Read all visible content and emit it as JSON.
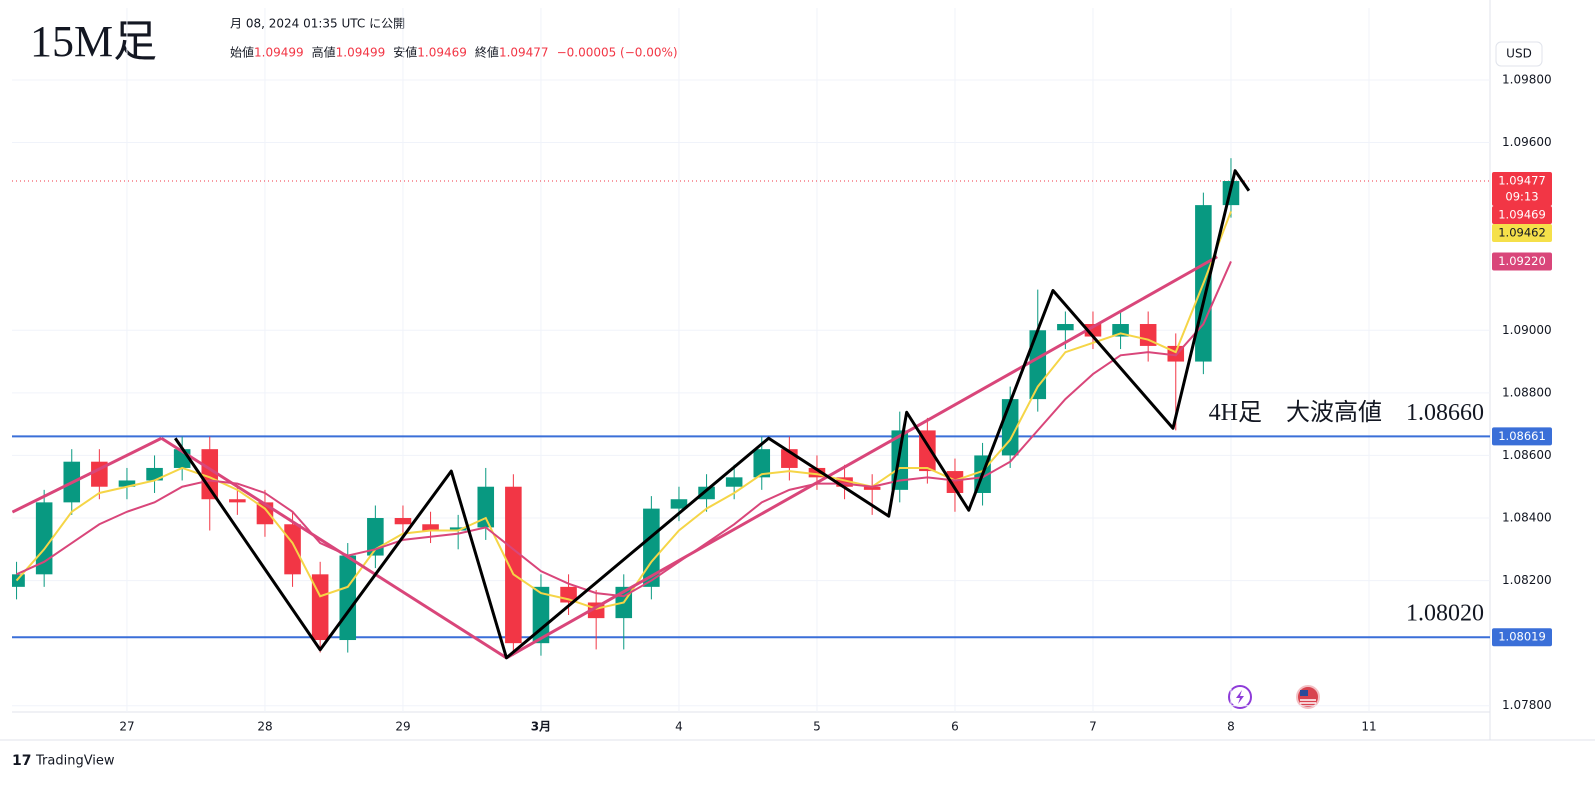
{
  "chart_data": {
    "type": "candlestick",
    "title": "15M足",
    "published": "月 08, 2024 01:35 UTC に公開",
    "ohlc_header": [
      {
        "label": "始値",
        "value": 1.09499
      },
      {
        "label": "高値",
        "value": 1.09499
      },
      {
        "label": "安値",
        "value": 1.09469
      },
      {
        "label": "終値",
        "value": 1.09477
      }
    ],
    "change": "−0.00005 (−0.00%)",
    "currency": "USD",
    "brand": "TradingView",
    "xlim": [
      -0.833,
      9.877
    ],
    "xticks": [
      {
        "value": 0,
        "label": "27"
      },
      {
        "value": 1,
        "label": "28"
      },
      {
        "value": 2,
        "label": "29"
      },
      {
        "value": 3,
        "label": "3月"
      },
      {
        "value": 4,
        "label": "4"
      },
      {
        "value": 5,
        "label": "5"
      },
      {
        "value": 6,
        "label": "6"
      },
      {
        "value": 7,
        "label": "7"
      },
      {
        "value": 8,
        "label": "8"
      },
      {
        "value": 9,
        "label": "11"
      }
    ],
    "ylim": [
      1.0778,
      1.1003
    ],
    "yticks": [
      {
        "value": 1.098,
        "label": "1.09800"
      },
      {
        "value": 1.096,
        "label": "1.09600"
      },
      {
        "value": 1.09,
        "label": "1.09000"
      },
      {
        "value": 1.088,
        "label": "1.08800"
      },
      {
        "value": 1.086,
        "label": "1.08600"
      },
      {
        "value": 1.084,
        "label": "1.08400"
      },
      {
        "value": 1.082,
        "label": "1.08200"
      },
      {
        "value": 1.078,
        "label": "1.07800"
      }
    ],
    "grid": true,
    "up_color": "#089981",
    "down_color": "#f23645",
    "x": [
      -0.8,
      -0.6,
      -0.4,
      -0.2,
      0,
      0.2,
      0.4,
      0.6,
      0.8,
      1,
      1.2,
      1.4,
      1.6,
      1.8,
      2,
      2.2,
      2.4,
      2.6,
      2.8,
      3,
      3.2,
      3.4,
      3.6,
      3.8,
      4,
      4.2,
      4.4,
      4.6,
      4.8,
      5,
      5.2,
      5.4,
      5.6,
      5.8,
      6,
      6.2,
      6.4,
      6.6,
      6.8,
      7,
      7.2,
      7.4,
      7.6,
      7.8,
      8
    ],
    "open": [
      1.0818,
      1.0822,
      1.0845,
      1.0858,
      1.085,
      1.0852,
      1.0856,
      1.0862,
      1.0846,
      1.0845,
      1.0838,
      1.0822,
      1.0801,
      1.0828,
      1.084,
      1.0838,
      1.0836,
      1.0837,
      1.085,
      1.08,
      1.0818,
      1.0813,
      1.0808,
      1.0818,
      1.0843,
      1.0846,
      1.085,
      1.0853,
      1.0862,
      1.0856,
      1.0853,
      1.085,
      1.0849,
      1.0868,
      1.0855,
      1.0848,
      1.086,
      1.0878,
      1.09,
      1.0902,
      1.0898,
      1.0902,
      1.0895,
      1.089,
      1.094
    ],
    "high": [
      1.0826,
      1.0849,
      1.0862,
      1.0862,
      1.0856,
      1.086,
      1.0866,
      1.0866,
      1.085,
      1.0849,
      1.0842,
      1.0826,
      1.0832,
      1.0844,
      1.0844,
      1.0842,
      1.0841,
      1.0856,
      1.0854,
      1.0822,
      1.0822,
      1.0817,
      1.0822,
      1.0847,
      1.085,
      1.0854,
      1.0857,
      1.0866,
      1.0866,
      1.086,
      1.0857,
      1.0854,
      1.0874,
      1.0872,
      1.0859,
      1.0864,
      1.0882,
      1.0913,
      1.0906,
      1.0906,
      1.0906,
      1.0906,
      1.0899,
      1.0944,
      1.0955
    ],
    "low": [
      1.0814,
      1.0818,
      1.0841,
      1.0846,
      1.0846,
      1.0848,
      1.0852,
      1.0836,
      1.0841,
      1.0834,
      1.0818,
      1.0797,
      1.0797,
      1.0824,
      1.0834,
      1.0832,
      1.083,
      1.0833,
      1.0796,
      1.0796,
      1.0809,
      1.0798,
      1.0798,
      1.0814,
      1.0839,
      1.0842,
      1.0846,
      1.0849,
      1.0852,
      1.0849,
      1.0846,
      1.0841,
      1.0845,
      1.0851,
      1.0842,
      1.0844,
      1.0856,
      1.0874,
      1.0894,
      1.0894,
      1.0894,
      1.089,
      1.0868,
      1.0886,
      1.0936
    ],
    "close": [
      1.0822,
      1.0845,
      1.0858,
      1.085,
      1.0852,
      1.0856,
      1.0862,
      1.0846,
      1.0845,
      1.0838,
      1.0822,
      1.0801,
      1.0828,
      1.084,
      1.0838,
      1.0836,
      1.0837,
      1.085,
      1.08,
      1.0818,
      1.0813,
      1.0808,
      1.0818,
      1.0843,
      1.0846,
      1.085,
      1.0853,
      1.0862,
      1.0856,
      1.0853,
      1.085,
      1.0849,
      1.0868,
      1.0855,
      1.0848,
      1.086,
      1.0878,
      1.09,
      1.0902,
      1.0898,
      1.0902,
      1.0895,
      1.089,
      1.094,
      1.09477
    ],
    "series": [
      {
        "color": "#f5d547",
        "values": [
          1.082,
          1.083,
          1.0842,
          1.0848,
          1.085,
          1.0852,
          1.0856,
          1.0853,
          1.0849,
          1.0843,
          1.0832,
          1.0815,
          1.0818,
          1.083,
          1.0835,
          1.0836,
          1.0836,
          1.084,
          1.0822,
          1.0816,
          1.0814,
          1.0811,
          1.0813,
          1.0826,
          1.0836,
          1.0843,
          1.0848,
          1.0854,
          1.0855,
          1.0854,
          1.0852,
          1.085,
          1.0856,
          1.0856,
          1.0852,
          1.0855,
          1.0865,
          1.0882,
          1.0893,
          1.0896,
          1.0899,
          1.0897,
          1.0893,
          1.0915,
          1.0938
        ]
      },
      {
        "color": "#d9467a",
        "values": [
          1.0822,
          1.0826,
          1.0832,
          1.0838,
          1.0842,
          1.0845,
          1.085,
          1.0852,
          1.0851,
          1.0848,
          1.0842,
          1.0832,
          1.0828,
          1.083,
          1.0833,
          1.0834,
          1.0835,
          1.0837,
          1.083,
          1.0823,
          1.0819,
          1.0816,
          1.0815,
          1.082,
          1.0826,
          1.0832,
          1.0838,
          1.0845,
          1.0849,
          1.0851,
          1.0851,
          1.085,
          1.0852,
          1.0853,
          1.0852,
          1.0853,
          1.0858,
          1.0868,
          1.0878,
          1.0886,
          1.0892,
          1.0893,
          1.0892,
          1.0902,
          1.0922
        ]
      }
    ],
    "zigzag": {
      "color": "#000000",
      "x": [
        0.35,
        1.4,
        2.35,
        2.75,
        4.65,
        5.52,
        5.65,
        6.1,
        6.71,
        7.58,
        8.03,
        8.13
      ],
      "y": [
        1.08655,
        1.07979,
        1.0855,
        1.07953,
        1.08655,
        1.08406,
        1.08738,
        1.08425,
        1.09127,
        1.08687,
        1.0951,
        1.09446
      ]
    },
    "trendlines": {
      "color": "#d9467a",
      "lines": [
        {
          "x": [
            -0.83,
            0.25
          ],
          "y": [
            1.08419,
            1.08655
          ]
        },
        {
          "x": [
            0.25,
            2.75
          ],
          "y": [
            1.08655,
            1.07953
          ]
        },
        {
          "x": [
            2.75,
            7.9
          ],
          "y": [
            1.07953,
            1.09235
          ]
        }
      ]
    },
    "hlines": [
      {
        "value": 1.08661,
        "color": "#3a6fd8"
      },
      {
        "value": 1.08019,
        "color": "#3a6fd8"
      }
    ],
    "last_price": 1.09477,
    "price_tags": [
      {
        "value": 1.09477,
        "sub": "09:13",
        "color": "#f23645"
      },
      {
        "value": 1.09469,
        "color": "#f23645"
      },
      {
        "value": 1.09462,
        "color": "#f5e04a"
      },
      {
        "value": 1.0922,
        "label": "1.09220",
        "color": "#d9467a"
      },
      {
        "value": 1.08661,
        "color": "#3a6fd8"
      },
      {
        "value": 1.08019,
        "color": "#3a6fd8"
      }
    ],
    "annotations": [
      {
        "text": "4H足　大波高値　1.08660",
        "value": 1.0866
      },
      {
        "text": "1.08020",
        "value": 1.0802
      }
    ]
  }
}
